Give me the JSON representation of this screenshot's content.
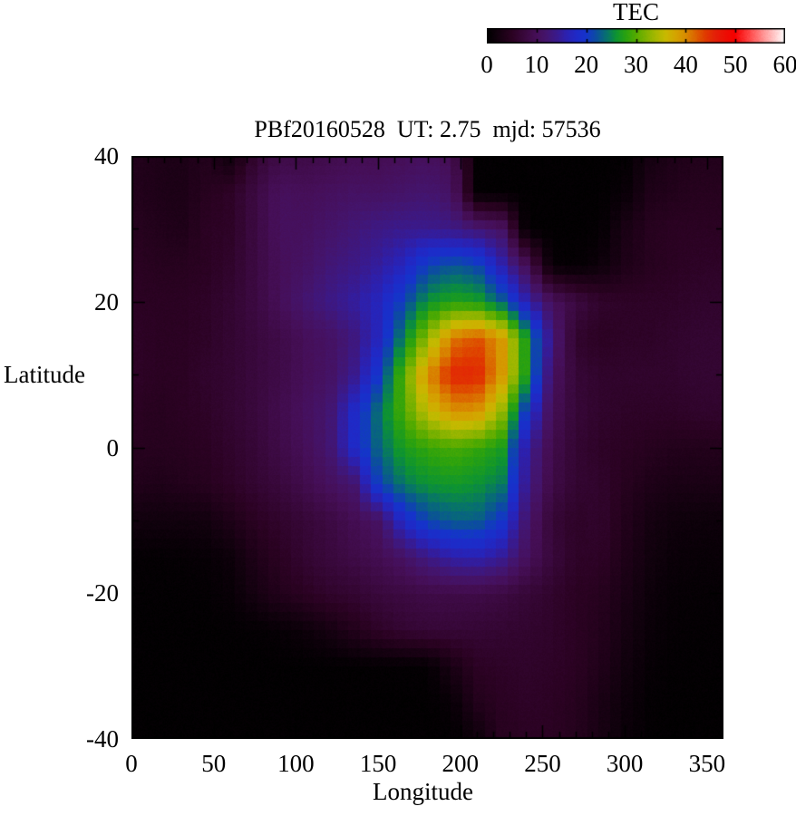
{
  "figure": {
    "title": "PBf20160528  UT: 2.75  mjd: 57536",
    "colorbar": {
      "label": "TEC",
      "min": 0,
      "max": 60,
      "tick_labels": [
        0,
        10,
        20,
        30,
        40,
        50,
        60
      ]
    },
    "x_axis": {
      "label": "Longitude",
      "min": 0,
      "max": 360,
      "tick_labels": [
        0,
        50,
        100,
        150,
        200,
        250,
        300,
        350
      ],
      "minor_step": 10
    },
    "y_axis": {
      "label": "Latitude",
      "min": -40,
      "max": 40,
      "tick_labels": [
        40,
        20,
        0,
        -20,
        -40
      ],
      "minor_step": 10
    }
  },
  "chart_data": {
    "type": "heatmap",
    "title": "PBf20160528  UT: 2.75  mjd: 57536",
    "xlabel": "Longitude",
    "ylabel": "Latitude",
    "zlabel": "TEC",
    "xlim": [
      0,
      360
    ],
    "ylim": [
      -40,
      40
    ],
    "zlim": [
      0,
      60
    ],
    "grid": true,
    "legend_position": "top-right-colorbar",
    "lon": [
      0,
      15,
      30,
      45,
      60,
      75,
      90,
      105,
      120,
      135,
      150,
      165,
      180,
      195,
      210,
      225,
      240,
      255,
      270,
      285,
      300,
      315,
      330,
      345,
      360
    ],
    "lat": [
      40,
      35,
      30,
      25,
      20,
      15,
      10,
      5,
      0,
      -5,
      -10,
      -15,
      -20,
      -25,
      -30,
      -35,
      -40
    ],
    "tec": [
      [
        4,
        3.5,
        3.2,
        4,
        2,
        6.5,
        8.5,
        8.5,
        9,
        9.5,
        9.5,
        10,
        10.5,
        9.5,
        0.4,
        0.3,
        0.3,
        0.3,
        0.3,
        0.3,
        0.4,
        2.5,
        3.5,
        4,
        4
      ],
      [
        4,
        3.5,
        3.2,
        4.5,
        5.5,
        8,
        10.5,
        10,
        10.5,
        11,
        11,
        11.5,
        12,
        11,
        0.5,
        0.3,
        0.3,
        0.3,
        0.3,
        0.3,
        1,
        3.5,
        4,
        4.5,
        4.5
      ],
      [
        4.5,
        4,
        3.5,
        5,
        5.5,
        8,
        10.5,
        10.5,
        11.5,
        12.5,
        13.5,
        14,
        14,
        13.5,
        12.5,
        11,
        0.4,
        0.3,
        0.3,
        0.5,
        3,
        4.5,
        5,
        5,
        5
      ],
      [
        5,
        4.5,
        4.5,
        5,
        6,
        8,
        10,
        11,
        12.5,
        13.5,
        15,
        17,
        21,
        22.5,
        21.5,
        16,
        10,
        0.8,
        0.5,
        1.5,
        3.5,
        4.5,
        5,
        5.5,
        5.5
      ],
      [
        5,
        5,
        5,
        5.5,
        6.5,
        8,
        10,
        12,
        13.5,
        15,
        17,
        21,
        26,
        27.5,
        27,
        23,
        16,
        10.5,
        8,
        6,
        5.5,
        5.5,
        5.5,
        6,
        6
      ],
      [
        5.5,
        5,
        5,
        5.5,
        6.5,
        7.5,
        8.5,
        10,
        11,
        13,
        17,
        25,
        33,
        41,
        43,
        39,
        27,
        13,
        6,
        5,
        5.5,
        5.5,
        6,
        6.5,
        6.5
      ],
      [
        5.5,
        5,
        5,
        6,
        6.5,
        7.5,
        8.5,
        10,
        11,
        14,
        20,
        30,
        40,
        45.5,
        45.5,
        39,
        27,
        11,
        7,
        6,
        6,
        6,
        6,
        6.5,
        6.5
      ],
      [
        5,
        4.5,
        5,
        5.5,
        6.5,
        7.5,
        9,
        10.5,
        12,
        18,
        24,
        29.5,
        35.5,
        39.5,
        39.5,
        33,
        20,
        10,
        7,
        6,
        5.5,
        5.5,
        5.5,
        6,
        6
      ],
      [
        4.5,
        4.5,
        4.5,
        5,
        6,
        7,
        8.5,
        10,
        12,
        18,
        23.5,
        27,
        28.5,
        29.5,
        28.5,
        27,
        15,
        9,
        6.5,
        5.5,
        5,
        4.5,
        4,
        4,
        4
      ],
      [
        4,
        3.5,
        4,
        4.5,
        5.5,
        6.5,
        7.5,
        9,
        10.5,
        12,
        21,
        24.5,
        26,
        26.5,
        26,
        24.5,
        14,
        8.5,
        6.5,
        6,
        4.5,
        3.5,
        3,
        3,
        3
      ],
      [
        2,
        2,
        2,
        2.2,
        3.5,
        5,
        6,
        7,
        8,
        9.5,
        11,
        18,
        21.5,
        23,
        23,
        20,
        12,
        7,
        5.5,
        6,
        4,
        2.5,
        1.8,
        1.5,
        1.5
      ],
      [
        0.5,
        0.5,
        0.6,
        0.8,
        1.5,
        3.5,
        5,
        6.5,
        7.5,
        8.5,
        9.5,
        11,
        13.5,
        15.5,
        16,
        14.5,
        10.5,
        7.5,
        5.5,
        5.5,
        3.5,
        2,
        1.2,
        1,
        1
      ],
      [
        0.4,
        0.4,
        0.4,
        0.5,
        1,
        2.5,
        4,
        5,
        6,
        6.5,
        7.5,
        8,
        8.5,
        8.5,
        8.5,
        8,
        7,
        6,
        5,
        4.5,
        3,
        1.5,
        0.8,
        0.6,
        0.6
      ],
      [
        0.3,
        0.3,
        0.3,
        0.3,
        0.4,
        0.5,
        0.8,
        1.5,
        2.5,
        4,
        5.5,
        6.5,
        7,
        7,
        6.8,
        6.5,
        6.2,
        5.8,
        5,
        4.2,
        2.5,
        1.2,
        0.6,
        0.5,
        0.5
      ],
      [
        0.3,
        0.3,
        0.3,
        0.3,
        0.3,
        0.3,
        0.3,
        0.3,
        0.3,
        0.3,
        0.4,
        0.4,
        0.5,
        3,
        5.2,
        5.5,
        5.8,
        5.5,
        5,
        3.8,
        2,
        0.8,
        0.4,
        0.4,
        0.4
      ],
      [
        0.3,
        0.3,
        0.3,
        0.3,
        0.3,
        0.3,
        0.3,
        0.3,
        0.3,
        0.3,
        0.3,
        0.3,
        0.3,
        1,
        4,
        5,
        5.5,
        5.2,
        4.5,
        3,
        1.5,
        0.5,
        0.3,
        0.3,
        0.3
      ],
      [
        0.3,
        0.3,
        0.3,
        0.3,
        0.3,
        0.3,
        0.3,
        0.3,
        0.3,
        0.3,
        0.3,
        0.3,
        0.3,
        0.3,
        1.5,
        4.5,
        5,
        5,
        4.2,
        2.8,
        1.2,
        0.4,
        0.3,
        0.3,
        0.3
      ]
    ],
    "palette": [
      [
        0,
        "#000000"
      ],
      [
        5,
        "#2b0222"
      ],
      [
        8,
        "#3c0a42"
      ],
      [
        10,
        "#460f58"
      ],
      [
        12,
        "#44156e"
      ],
      [
        14,
        "#3a1a8c"
      ],
      [
        16,
        "#2c21b0"
      ],
      [
        18,
        "#1f2ac8"
      ],
      [
        20,
        "#1534cc"
      ],
      [
        22,
        "#0c4e9e"
      ],
      [
        24,
        "#077070"
      ],
      [
        26,
        "#0d9432"
      ],
      [
        28,
        "#2aa20f"
      ],
      [
        30,
        "#54ab00"
      ],
      [
        32,
        "#7fb200"
      ],
      [
        34,
        "#a8b800"
      ],
      [
        36,
        "#c9b900"
      ],
      [
        38,
        "#d4a400"
      ],
      [
        40,
        "#d88c00"
      ],
      [
        42,
        "#dc6400"
      ],
      [
        44,
        "#e03a00"
      ],
      [
        46,
        "#e42008"
      ],
      [
        48,
        "#ec0e04"
      ],
      [
        50,
        "#f60000"
      ],
      [
        53,
        "#ff4a4a"
      ],
      [
        56,
        "#ff9a9a"
      ],
      [
        58,
        "#ffc9c9"
      ],
      [
        60,
        "#ffffff"
      ]
    ]
  }
}
